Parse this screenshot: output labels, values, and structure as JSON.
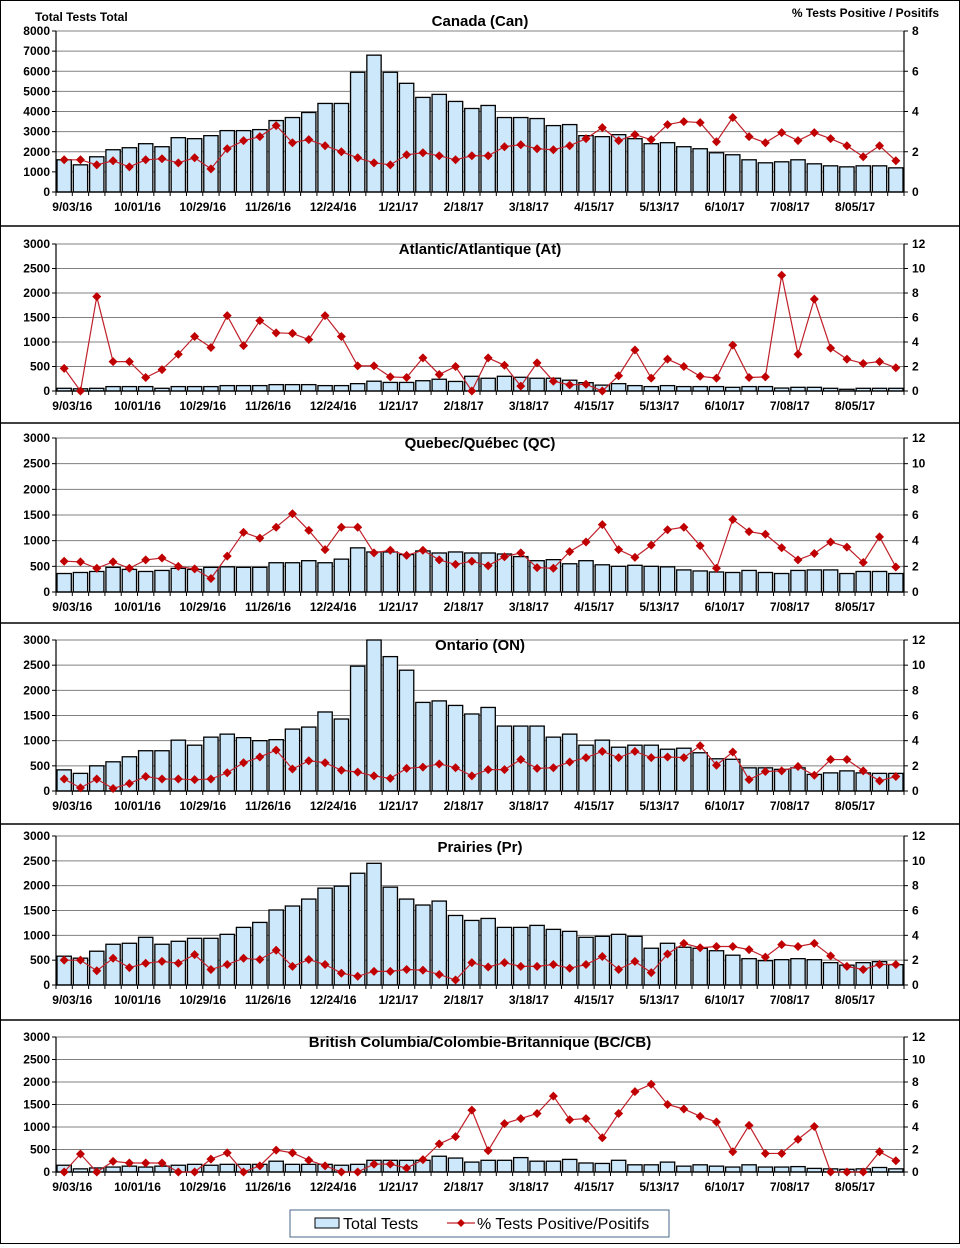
{
  "figure": {
    "left_axis_title": "Total Tests Total",
    "right_axis_title": "% Tests Positive / Positifs",
    "legend": [
      {
        "label": "Total Tests",
        "kind": "bar"
      },
      {
        "label": "% Tests Positive/Positifs",
        "kind": "line"
      }
    ],
    "colors": {
      "bar_fill": "#cce8fa",
      "bar_stroke": "#000000",
      "line": "#c00000",
      "grid": "#808080"
    }
  },
  "chart_data": [
    {
      "type": "bar+line",
      "title": "Canada (Can)",
      "x_tick_labels": [
        "9/03/16",
        "10/01/16",
        "10/29/16",
        "11/26/16",
        "12/24/16",
        "1/21/17",
        "2/18/17",
        "3/18/17",
        "4/15/17",
        "5/13/17",
        "6/10/17",
        "7/08/17",
        "8/05/17"
      ],
      "ylim_left": [
        0,
        8000
      ],
      "yticks_left": [
        0,
        1000,
        2000,
        3000,
        4000,
        5000,
        6000,
        7000,
        8000
      ],
      "ylim_right": [
        0,
        8
      ],
      "yticks_right": [
        0,
        2,
        4,
        6,
        8
      ],
      "series": [
        {
          "name": "Total Tests",
          "axis": "left",
          "values": [
            1600,
            1350,
            1750,
            2100,
            2200,
            2400,
            2250,
            2700,
            2650,
            2800,
            3050,
            3050,
            3100,
            3550,
            3700,
            3950,
            4400,
            4400,
            5950,
            6800,
            5950,
            5400,
            4700,
            4850,
            4500,
            4150,
            4300,
            3700,
            3700,
            3650,
            3300,
            3350,
            2800,
            2750,
            2850,
            2650,
            2400,
            2450,
            2250,
            2150,
            1950,
            1850,
            1600,
            1450,
            1500,
            1600,
            1400,
            1300,
            1250,
            1300,
            1300,
            1200
          ]
        },
        {
          "name": "% Tests Positive/Positifs",
          "axis": "right",
          "values": [
            1.6,
            1.6,
            1.35,
            1.55,
            1.25,
            1.6,
            1.65,
            1.45,
            1.7,
            1.15,
            2.15,
            2.55,
            2.75,
            3.3,
            2.45,
            2.6,
            2.3,
            2.0,
            1.7,
            1.45,
            1.35,
            1.85,
            1.95,
            1.8,
            1.6,
            1.8,
            1.8,
            2.25,
            2.35,
            2.15,
            2.1,
            2.3,
            2.65,
            3.2,
            2.55,
            2.85,
            2.6,
            3.35,
            3.5,
            3.45,
            2.5,
            3.7,
            2.75,
            2.45,
            2.95,
            2.55,
            2.95,
            2.65,
            2.3,
            1.75,
            2.3,
            1.55
          ]
        }
      ]
    },
    {
      "type": "bar+line",
      "title": "Atlantic/Atlantique  (At)",
      "x_tick_labels": [
        "9/03/16",
        "10/01/16",
        "10/29/16",
        "11/26/16",
        "12/24/16",
        "1/21/17",
        "2/18/17",
        "3/18/17",
        "4/15/17",
        "5/13/17",
        "6/10/17",
        "7/08/17",
        "8/05/17"
      ],
      "ylim_left": [
        0,
        3000
      ],
      "yticks_left": [
        0,
        500,
        1000,
        1500,
        2000,
        2500,
        3000
      ],
      "ylim_right": [
        0,
        12
      ],
      "yticks_right": [
        0,
        2,
        4,
        6,
        8,
        10,
        12
      ],
      "series": [
        {
          "name": "Total Tests",
          "axis": "left",
          "values": [
            55,
            45,
            55,
            90,
            90,
            90,
            55,
            90,
            90,
            90,
            110,
            110,
            110,
            130,
            130,
            130,
            110,
            110,
            150,
            200,
            175,
            175,
            210,
            240,
            195,
            300,
            260,
            300,
            280,
            260,
            260,
            220,
            170,
            120,
            150,
            110,
            90,
            110,
            90,
            90,
            90,
            75,
            90,
            90,
            60,
            75,
            75,
            55,
            35,
            55,
            55,
            55
          ]
        },
        {
          "name": "% Tests Positive/Positifs",
          "axis": "right",
          "values": [
            1.85,
            0,
            7.7,
            2.4,
            2.4,
            1.1,
            1.75,
            3.0,
            4.45,
            3.55,
            6.15,
            3.7,
            5.75,
            4.75,
            4.7,
            4.2,
            6.15,
            4.45,
            2.05,
            2.05,
            1.15,
            1.1,
            2.7,
            1.35,
            2.0,
            0,
            2.7,
            2.1,
            0.4,
            2.3,
            0.8,
            0.5,
            0.55,
            0,
            1.25,
            3.35,
            1.05,
            2.6,
            2.0,
            1.2,
            1.05,
            3.75,
            1.1,
            1.15,
            9.45,
            3.0,
            7.5,
            3.5,
            2.6,
            2.25,
            2.4,
            1.9
          ]
        }
      ]
    },
    {
      "type": "bar+line",
      "title": "Quebec/Québec (QC)",
      "x_tick_labels": [
        "9/03/16",
        "10/01/16",
        "10/29/16",
        "11/26/16",
        "12/24/16",
        "1/21/17",
        "2/18/17",
        "3/18/17",
        "4/15/17",
        "5/13/17",
        "6/10/17",
        "7/08/17",
        "8/05/17"
      ],
      "ylim_left": [
        0,
        3000
      ],
      "yticks_left": [
        0,
        500,
        1000,
        1500,
        2000,
        2500,
        3000
      ],
      "ylim_right": [
        0,
        12
      ],
      "yticks_right": [
        0,
        2,
        4,
        6,
        8,
        10,
        12
      ],
      "series": [
        {
          "name": "Total Tests",
          "axis": "left",
          "values": [
            360,
            380,
            400,
            480,
            440,
            400,
            420,
            460,
            440,
            480,
            490,
            480,
            480,
            570,
            570,
            610,
            570,
            640,
            860,
            780,
            780,
            730,
            800,
            760,
            780,
            760,
            760,
            740,
            690,
            610,
            630,
            550,
            610,
            530,
            500,
            520,
            500,
            490,
            430,
            410,
            390,
            380,
            420,
            380,
            360,
            420,
            430,
            430,
            360,
            400,
            400,
            360
          ]
        },
        {
          "name": "% Tests Positive/Positifs",
          "axis": "right",
          "values": [
            2.4,
            2.35,
            1.85,
            2.35,
            1.85,
            2.5,
            2.65,
            2.0,
            1.8,
            1.05,
            2.8,
            4.65,
            4.2,
            5.05,
            6.1,
            4.8,
            3.3,
            5.05,
            5.05,
            3.05,
            3.25,
            2.85,
            3.25,
            2.5,
            2.15,
            2.4,
            2.05,
            2.75,
            3.05,
            1.9,
            1.85,
            3.15,
            3.9,
            5.25,
            3.3,
            2.7,
            3.65,
            4.85,
            5.05,
            3.6,
            1.85,
            5.65,
            4.7,
            4.5,
            3.45,
            2.5,
            3.0,
            3.9,
            3.5,
            2.3,
            4.3,
            1.95
          ]
        }
      ]
    },
    {
      "type": "bar+line",
      "title": "Ontario (ON)",
      "x_tick_labels": [
        "9/03/16",
        "10/01/16",
        "10/29/16",
        "11/26/16",
        "12/24/16",
        "1/21/17",
        "2/18/17",
        "3/18/17",
        "4/15/17",
        "5/13/17",
        "6/10/17",
        "7/08/17",
        "8/05/17"
      ],
      "ylim_left": [
        0,
        3000
      ],
      "yticks_left": [
        0,
        500,
        1000,
        1500,
        2000,
        2500,
        3000
      ],
      "ylim_right": [
        0,
        12
      ],
      "yticks_right": [
        0,
        2,
        4,
        6,
        8,
        10,
        12
      ],
      "series": [
        {
          "name": "Total Tests",
          "axis": "left",
          "values": [
            420,
            350,
            500,
            580,
            680,
            800,
            800,
            1010,
            910,
            1070,
            1130,
            1060,
            1000,
            1020,
            1230,
            1270,
            1570,
            1430,
            2480,
            3000,
            2670,
            2400,
            1760,
            1790,
            1700,
            1530,
            1660,
            1290,
            1290,
            1290,
            1070,
            1130,
            910,
            1010,
            870,
            910,
            910,
            830,
            850,
            760,
            640,
            630,
            460,
            460,
            430,
            460,
            330,
            360,
            400,
            360,
            350,
            350
          ]
        },
        {
          "name": "% Tests Positive/Positifs",
          "axis": "right",
          "values": [
            0.95,
            0.25,
            0.95,
            0.2,
            0.6,
            1.15,
            0.95,
            0.95,
            0.9,
            0.95,
            1.45,
            2.25,
            2.7,
            3.25,
            1.75,
            2.4,
            2.25,
            1.65,
            1.5,
            1.2,
            1.0,
            1.8,
            1.9,
            2.15,
            1.85,
            1.2,
            1.7,
            1.7,
            2.5,
            1.8,
            1.85,
            2.3,
            2.65,
            3.15,
            2.65,
            3.15,
            2.65,
            2.7,
            2.65,
            3.6,
            2.05,
            3.1,
            0.9,
            1.55,
            1.6,
            1.95,
            1.25,
            2.5,
            2.5,
            1.6,
            0.8,
            1.15
          ]
        }
      ]
    },
    {
      "type": "bar+line",
      "title": "Prairies (Pr)",
      "x_tick_labels": [
        "9/03/16",
        "10/01/16",
        "10/29/16",
        "11/26/16",
        "12/24/16",
        "1/21/17",
        "2/18/17",
        "3/18/17",
        "4/15/17",
        "5/13/17",
        "6/10/17",
        "7/08/17",
        "8/05/17"
      ],
      "ylim_left": [
        0,
        3000
      ],
      "yticks_left": [
        0,
        500,
        1000,
        1500,
        2000,
        2500,
        3000
      ],
      "ylim_right": [
        0,
        12
      ],
      "yticks_right": [
        0,
        2,
        4,
        6,
        8,
        10,
        12
      ],
      "series": [
        {
          "name": "Total Tests",
          "axis": "left",
          "values": [
            580,
            540,
            680,
            820,
            840,
            960,
            820,
            880,
            940,
            940,
            1020,
            1160,
            1260,
            1510,
            1590,
            1730,
            1950,
            1990,
            2250,
            2450,
            1970,
            1730,
            1610,
            1690,
            1400,
            1300,
            1340,
            1160,
            1160,
            1200,
            1120,
            1080,
            960,
            980,
            1020,
            980,
            740,
            840,
            760,
            740,
            690,
            600,
            530,
            490,
            510,
            530,
            510,
            450,
            400,
            450,
            470,
            410
          ]
        },
        {
          "name": "% Tests Positive/Positifs",
          "axis": "right",
          "values": [
            2.0,
            2.0,
            1.15,
            2.15,
            1.4,
            1.75,
            1.9,
            1.75,
            2.45,
            1.25,
            1.65,
            2.15,
            2.05,
            2.8,
            1.5,
            2.05,
            1.65,
            0.95,
            0.7,
            1.1,
            1.1,
            1.25,
            1.2,
            0.85,
            0.4,
            1.8,
            1.45,
            1.8,
            1.5,
            1.5,
            1.65,
            1.35,
            1.65,
            2.3,
            1.25,
            1.9,
            1.0,
            2.5,
            3.35,
            3.0,
            3.1,
            3.1,
            2.85,
            2.25,
            3.25,
            3.1,
            3.35,
            2.35,
            1.5,
            1.25,
            1.65,
            1.65
          ]
        }
      ]
    },
    {
      "type": "bar+line",
      "title": "British Columbia/Colombie-Britannique (BC/CB)",
      "x_tick_labels": [
        "9/03/16",
        "10/01/16",
        "10/29/16",
        "11/26/16",
        "12/24/16",
        "1/21/17",
        "2/18/17",
        "3/18/17",
        "4/15/17",
        "5/13/17",
        "6/10/17",
        "7/08/17",
        "8/05/17"
      ],
      "ylim_left": [
        0,
        3000
      ],
      "yticks_left": [
        0,
        500,
        1000,
        1500,
        2000,
        2500,
        3000
      ],
      "ylim_right": [
        0,
        12
      ],
      "yticks_right": [
        0,
        2,
        4,
        6,
        8,
        10,
        12
      ],
      "series": [
        {
          "name": "Total Tests",
          "axis": "left",
          "values": [
            150,
            70,
            90,
            110,
            130,
            110,
            130,
            150,
            170,
            150,
            170,
            170,
            170,
            240,
            170,
            170,
            170,
            150,
            170,
            260,
            260,
            260,
            260,
            350,
            310,
            220,
            260,
            260,
            320,
            240,
            240,
            280,
            200,
            190,
            260,
            160,
            160,
            220,
            130,
            160,
            130,
            110,
            160,
            110,
            110,
            120,
            80,
            70,
            60,
            70,
            100,
            70
          ]
        },
        {
          "name": "% Tests Positive/Positifs",
          "axis": "right",
          "values": [
            0,
            1.6,
            0,
            0.95,
            0.8,
            0.8,
            0.8,
            0,
            0,
            1.15,
            1.7,
            0,
            0.55,
            1.95,
            1.7,
            1.05,
            0.55,
            0,
            0,
            0.7,
            0.7,
            0.35,
            1.1,
            2.5,
            3.15,
            5.5,
            1.9,
            4.3,
            4.75,
            5.2,
            6.75,
            4.65,
            4.75,
            3.05,
            5.2,
            7.15,
            7.8,
            6.0,
            5.6,
            4.95,
            4.45,
            1.8,
            4.15,
            1.65,
            1.65,
            2.9,
            4.05,
            0,
            0,
            0,
            1.8,
            1.0
          ]
        }
      ]
    }
  ]
}
